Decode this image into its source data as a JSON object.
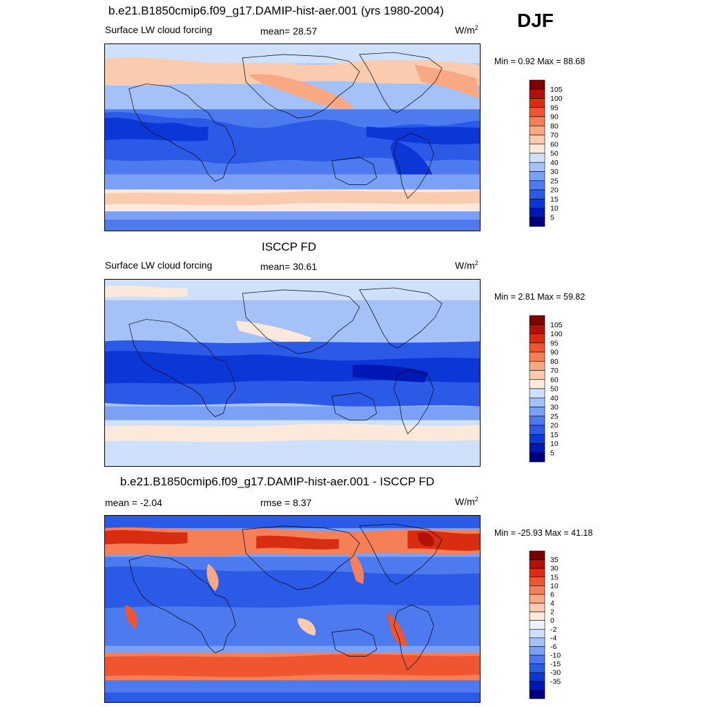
{
  "season": "DJF",
  "colors": {
    "abs_scale": [
      "#00007f",
      "#0018b3",
      "#0a37d6",
      "#2a5ae6",
      "#4d7bef",
      "#7aa1f5",
      "#a5c2f8",
      "#cfe0fb",
      "#fde9db",
      "#fbcbb0",
      "#f9a884",
      "#f57f57",
      "#ee5530",
      "#d92d12",
      "#b31107",
      "#7f0000"
    ],
    "diff_scale": [
      "#00007f",
      "#0018b3",
      "#0a37d6",
      "#2a5ae6",
      "#4d7bef",
      "#7aa1f5",
      "#a5c2f8",
      "#cfe0fb",
      "#eef4fd",
      "#fde9db",
      "#fbcbb0",
      "#f9a884",
      "#f57f57",
      "#ee5530",
      "#d92d12",
      "#b31107",
      "#7f0000"
    ],
    "coast": "#000000"
  },
  "panels": [
    {
      "title": "b.e21.B1850cmip6.f09_g17.DAMIP-hist-aer.001 (yrs 1980-2004)",
      "left_label": "Surface LW cloud forcing",
      "center_label": "mean=  28.57",
      "units": "W/m",
      "units_sup": "2",
      "minmax": "Min =   0.92 Max =  88.68",
      "scale": "abs_scale",
      "colorbar_labels": [
        "105",
        "100",
        "95",
        "90",
        "80",
        "70",
        "60",
        "50",
        "40",
        "30",
        "25",
        "20",
        "15",
        "10",
        "5"
      ]
    },
    {
      "title": "ISCCP FD",
      "left_label": "Surface LW cloud forcing",
      "center_label": "mean=  30.61",
      "units": "W/m",
      "units_sup": "2",
      "minmax": "Min =   2.81 Max =  59.82",
      "scale": "abs_scale",
      "colorbar_labels": [
        "105",
        "100",
        "95",
        "90",
        "80",
        "70",
        "60",
        "50",
        "40",
        "30",
        "25",
        "20",
        "15",
        "10",
        "5"
      ]
    },
    {
      "title": "b.e21.B1850cmip6.f09_g17.DAMIP-hist-aer.001 - ISCCP FD",
      "left_label": "mean =  -2.04",
      "center_label": "rmse =   8.37",
      "units": "W/m",
      "units_sup": "2",
      "minmax": "Min = -25.93 Max =  41.18",
      "scale": "diff_scale",
      "colorbar_labels": [
        "35",
        "30",
        "15",
        "10",
        "6",
        "4",
        "2",
        "0",
        "-2",
        "-4",
        "-6",
        "-10",
        "-15",
        "-30",
        "-35"
      ]
    }
  ]
}
